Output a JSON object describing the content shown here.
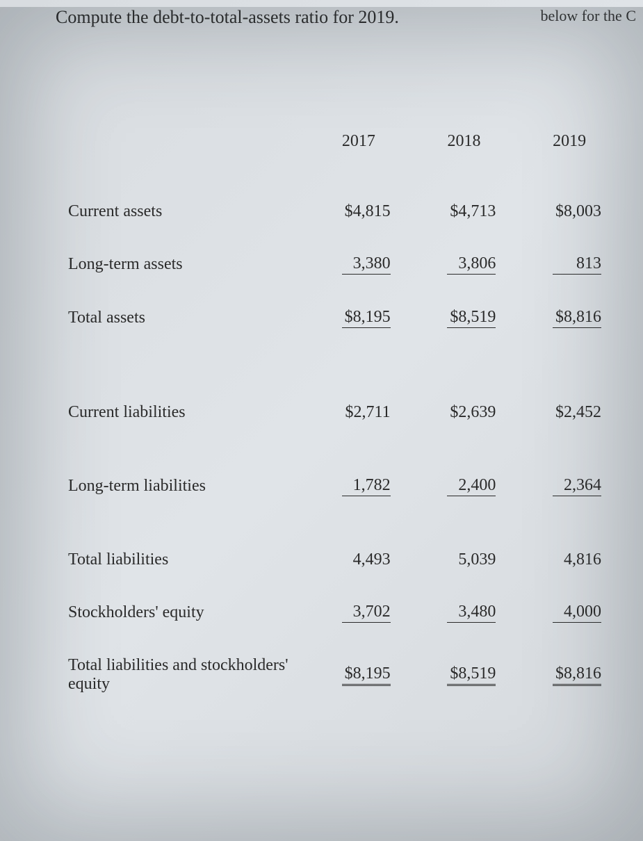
{
  "header_partial": "below for the C",
  "question": "Compute the debt-to-total-assets ratio for 2019.",
  "table": {
    "columns": [
      "",
      "2017",
      "2018",
      "2019"
    ],
    "rows": [
      {
        "label": "Current assets",
        "vals": [
          "$4,815",
          "$4,713",
          "$8,003"
        ],
        "style": [
          "plain",
          "plain",
          "plain"
        ]
      },
      {
        "label": "Long-term assets",
        "vals": [
          "3,380",
          "3,806",
          "813"
        ],
        "style": [
          "underline",
          "underline",
          "underline"
        ]
      },
      {
        "label": "Total assets",
        "vals": [
          "$8,195",
          "$8,519",
          "$8,816"
        ],
        "style": [
          "underline",
          "underline",
          "underline"
        ]
      },
      {
        "spacer": true
      },
      {
        "label": "Current liabilities",
        "vals": [
          "$2,711",
          "$2,639",
          "$2,452"
        ],
        "style": [
          "plain",
          "plain",
          "plain"
        ]
      },
      {
        "spacer_sm": true
      },
      {
        "label": "Long-term liabilities",
        "vals": [
          "1,782",
          "2,400",
          "2,364"
        ],
        "style": [
          "underline",
          "underline",
          "underline"
        ]
      },
      {
        "spacer_sm": true
      },
      {
        "label": "Total liabilities",
        "vals": [
          "4,493",
          "5,039",
          "4,816"
        ],
        "style": [
          "plain",
          "plain",
          "plain"
        ]
      },
      {
        "label": "Stockholders' equity",
        "vals": [
          "3,702",
          "3,480",
          "4,000"
        ],
        "style": [
          "underline",
          "underline",
          "underline"
        ]
      },
      {
        "label": "Total liabilities and stockholders' equity",
        "vals": [
          "$8,195",
          "$8,519",
          "$8,816"
        ],
        "style": [
          "dbl",
          "dbl",
          "dbl"
        ]
      }
    ]
  },
  "styling": {
    "background_gradient": [
      "#d8dce0",
      "#e0e4e8",
      "#d5d9dd"
    ],
    "text_color": "#2a2a2a",
    "font_family": "Georgia, Times New Roman, serif",
    "header_fontsize": 24,
    "cell_fontsize": 24,
    "question_fontsize": 26,
    "underline_color": "#2a2a2a"
  }
}
